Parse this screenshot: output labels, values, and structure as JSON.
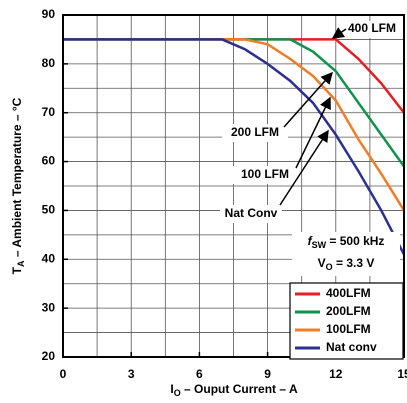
{
  "chart_data": {
    "type": "line",
    "x_title": [
      "I",
      "O",
      " – Ouput Current  – A"
    ],
    "y_title": [
      "T",
      "A",
      " – Ambient Temperature – °C"
    ],
    "x": [
      0,
      7,
      8,
      9,
      10,
      11,
      12,
      13,
      14,
      15
    ],
    "series": [
      {
        "name": "400LFM",
        "color": "#e31e24",
        "values": [
          85,
          85,
          85,
          85,
          85,
          85,
          85,
          81,
          76,
          70
        ]
      },
      {
        "name": "200LFM",
        "color": "#10924a",
        "values": [
          85,
          85,
          85,
          85,
          85,
          82.5,
          78.5,
          72,
          65.5,
          59
        ]
      },
      {
        "name": "100LFM",
        "color": "#f07d2a",
        "values": [
          85,
          85,
          85,
          84,
          81,
          77.5,
          72.5,
          64.5,
          57.5,
          50
        ]
      },
      {
        "name": "Nat conv",
        "color": "#2b2f8f",
        "values": [
          85,
          85,
          83,
          80,
          76.5,
          72,
          65.5,
          58,
          50,
          41
        ]
      }
    ],
    "xlim": [
      0,
      15
    ],
    "ylim": [
      20,
      90
    ],
    "xticks": [
      0,
      3,
      6,
      9,
      12,
      15
    ],
    "yticks": [
      20,
      30,
      40,
      50,
      60,
      70,
      80,
      90
    ],
    "xgrid": [
      1.5,
      3,
      4.5,
      6,
      7.5,
      9,
      10.5,
      12,
      13.5
    ],
    "ygrid": [
      25,
      30,
      35,
      40,
      45,
      50,
      55,
      60,
      65,
      70,
      75,
      80,
      85
    ],
    "annotations": [
      "400 LFM",
      "200 LFM",
      "100 LFM",
      "Nat Conv"
    ],
    "conditions": [
      [
        "f",
        "SW",
        " = 500 kHz"
      ],
      [
        "V",
        "O",
        " = 3.3 V"
      ]
    ],
    "legend": "lower right"
  }
}
